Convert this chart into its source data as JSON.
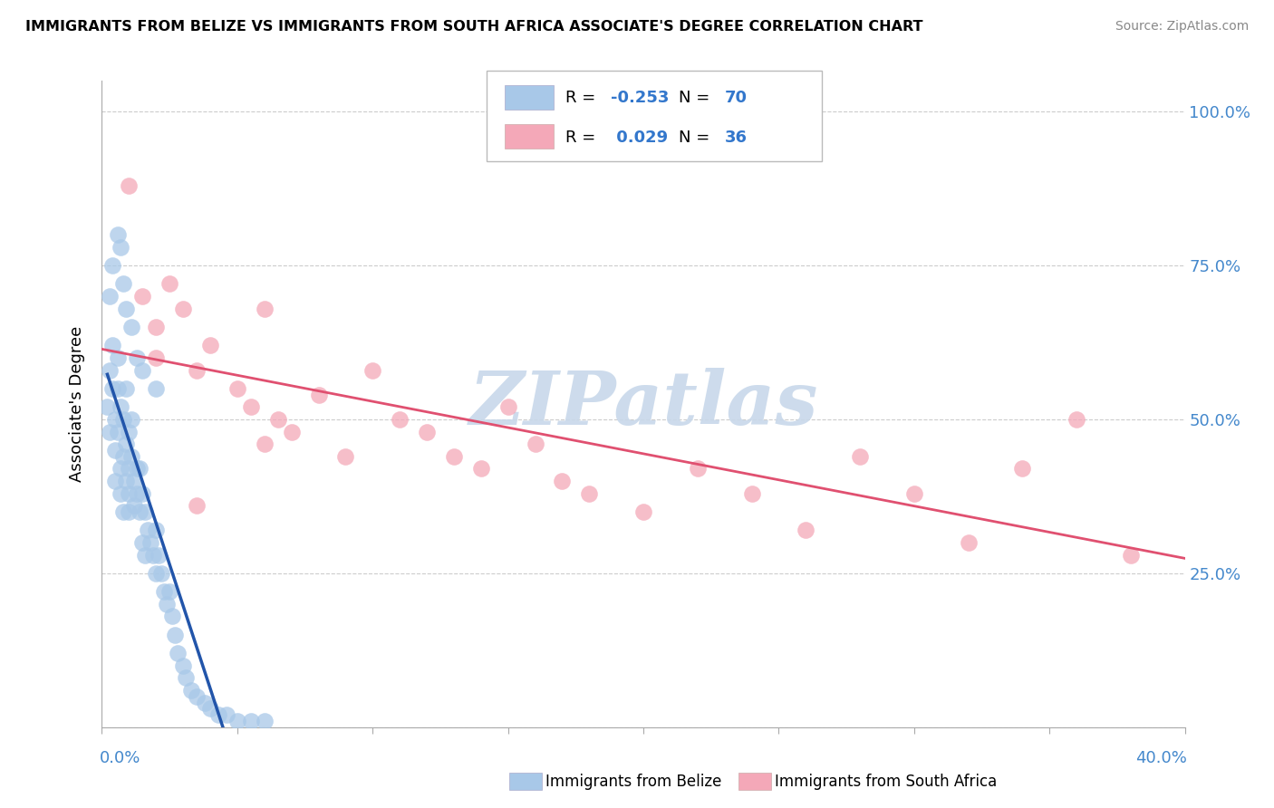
{
  "title": "IMMIGRANTS FROM BELIZE VS IMMIGRANTS FROM SOUTH AFRICA ASSOCIATE'S DEGREE CORRELATION CHART",
  "source": "Source: ZipAtlas.com",
  "ylabel": "Associate's Degree",
  "y_ticks": [
    0.0,
    0.25,
    0.5,
    0.75,
    1.0
  ],
  "y_tick_labels_right": [
    "",
    "25.0%",
    "50.0%",
    "75.0%",
    "100.0%"
  ],
  "x_min": 0.0,
  "x_max": 0.4,
  "y_min": 0.0,
  "y_max": 1.05,
  "r_belize": -0.253,
  "n_belize": 70,
  "r_sa": 0.029,
  "n_sa": 36,
  "color_belize": "#a8c8e8",
  "color_sa": "#f4a8b8",
  "line_color_belize": "#2255aa",
  "line_color_sa": "#e05070",
  "watermark_color": "#c8d8ea",
  "belize_x": [
    0.002,
    0.003,
    0.003,
    0.004,
    0.004,
    0.005,
    0.005,
    0.005,
    0.006,
    0.006,
    0.006,
    0.007,
    0.007,
    0.007,
    0.008,
    0.008,
    0.008,
    0.009,
    0.009,
    0.009,
    0.01,
    0.01,
    0.01,
    0.01,
    0.011,
    0.011,
    0.012,
    0.012,
    0.013,
    0.013,
    0.014,
    0.014,
    0.015,
    0.015,
    0.016,
    0.016,
    0.017,
    0.018,
    0.019,
    0.02,
    0.02,
    0.021,
    0.022,
    0.023,
    0.024,
    0.025,
    0.026,
    0.027,
    0.028,
    0.03,
    0.031,
    0.033,
    0.035,
    0.038,
    0.04,
    0.043,
    0.046,
    0.05,
    0.055,
    0.06,
    0.003,
    0.004,
    0.006,
    0.007,
    0.008,
    0.009,
    0.011,
    0.013,
    0.015,
    0.02
  ],
  "belize_y": [
    0.52,
    0.48,
    0.58,
    0.55,
    0.62,
    0.45,
    0.5,
    0.4,
    0.48,
    0.55,
    0.6,
    0.42,
    0.38,
    0.52,
    0.44,
    0.35,
    0.5,
    0.4,
    0.46,
    0.55,
    0.42,
    0.38,
    0.48,
    0.35,
    0.44,
    0.5,
    0.4,
    0.36,
    0.42,
    0.38,
    0.35,
    0.42,
    0.38,
    0.3,
    0.35,
    0.28,
    0.32,
    0.3,
    0.28,
    0.25,
    0.32,
    0.28,
    0.25,
    0.22,
    0.2,
    0.22,
    0.18,
    0.15,
    0.12,
    0.1,
    0.08,
    0.06,
    0.05,
    0.04,
    0.03,
    0.02,
    0.02,
    0.01,
    0.01,
    0.01,
    0.7,
    0.75,
    0.8,
    0.78,
    0.72,
    0.68,
    0.65,
    0.6,
    0.58,
    0.55
  ],
  "sa_x": [
    0.01,
    0.015,
    0.02,
    0.025,
    0.03,
    0.035,
    0.04,
    0.05,
    0.055,
    0.06,
    0.065,
    0.07,
    0.08,
    0.09,
    0.1,
    0.11,
    0.12,
    0.13,
    0.14,
    0.15,
    0.16,
    0.17,
    0.18,
    0.2,
    0.22,
    0.24,
    0.26,
    0.28,
    0.3,
    0.32,
    0.34,
    0.36,
    0.38,
    0.02,
    0.035,
    0.06
  ],
  "sa_y": [
    0.88,
    0.7,
    0.65,
    0.72,
    0.68,
    0.58,
    0.62,
    0.55,
    0.52,
    0.68,
    0.5,
    0.48,
    0.54,
    0.44,
    0.58,
    0.5,
    0.48,
    0.44,
    0.42,
    0.52,
    0.46,
    0.4,
    0.38,
    0.35,
    0.42,
    0.38,
    0.32,
    0.44,
    0.38,
    0.3,
    0.42,
    0.5,
    0.28,
    0.6,
    0.36,
    0.46
  ]
}
